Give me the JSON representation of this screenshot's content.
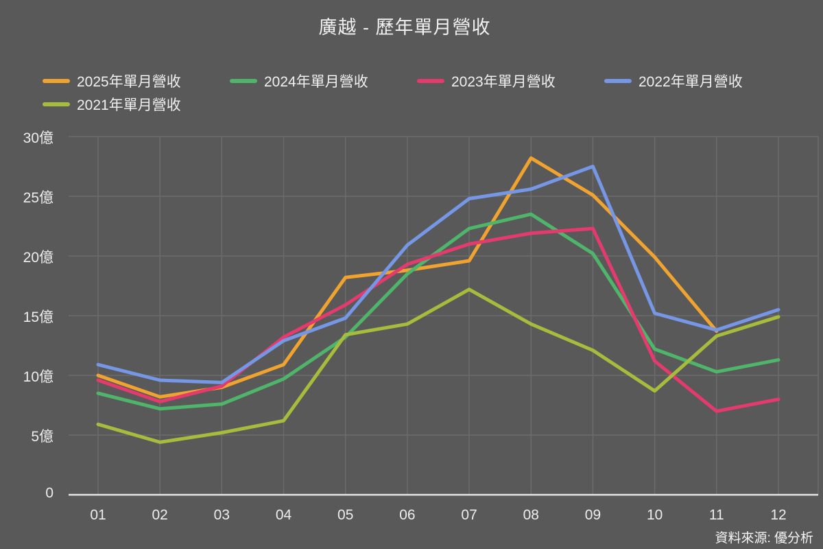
{
  "title": "廣越 - 歷年單月營收",
  "source_note": "資料來源: 優分析",
  "colors": {
    "background": "#595959",
    "text": "#F0F0F0",
    "gridline": "#6C6C6C",
    "axis_line": "#E6E6E6"
  },
  "chart_data": {
    "type": "line",
    "title": "廣越 - 歷年單月營收",
    "xlabel": "",
    "ylabel": "",
    "unit": "億",
    "ylim": [
      0,
      30
    ],
    "grid": true,
    "legend_position": "top-left",
    "categories": [
      "01",
      "02",
      "03",
      "04",
      "05",
      "06",
      "07",
      "08",
      "09",
      "10",
      "11",
      "12"
    ],
    "yticks": [
      0,
      5,
      10,
      15,
      20,
      25,
      30
    ],
    "ytick_labels": [
      "0",
      "5億",
      "10億",
      "15億",
      "20億",
      "25億",
      "30億"
    ],
    "series": [
      {
        "name": "2025年單月營收",
        "color": "#F0A32F",
        "values": [
          10.0,
          8.2,
          9.0,
          10.9,
          18.2,
          18.8,
          19.6,
          28.2,
          25.1,
          19.9,
          13.7,
          null
        ]
      },
      {
        "name": "2024年單月營收",
        "color": "#4FB56A",
        "values": [
          8.5,
          7.2,
          7.6,
          9.7,
          13.2,
          18.5,
          22.3,
          23.5,
          20.2,
          12.2,
          10.3,
          11.3
        ]
      },
      {
        "name": "2023年單月營收",
        "color": "#E53A6E",
        "values": [
          9.6,
          7.8,
          9.1,
          13.2,
          15.9,
          19.3,
          21.0,
          21.9,
          22.3,
          11.2,
          7.0,
          8.0
        ]
      },
      {
        "name": "2022年單月營收",
        "color": "#7597E6",
        "values": [
          10.9,
          9.6,
          9.4,
          12.9,
          14.8,
          20.9,
          24.8,
          25.6,
          27.5,
          15.2,
          13.8,
          15.5
        ]
      },
      {
        "name": "2021年單月營收",
        "color": "#A6BC3C",
        "values": [
          5.9,
          4.4,
          5.2,
          6.2,
          13.4,
          14.3,
          17.2,
          14.3,
          12.1,
          8.7,
          13.3,
          14.9
        ]
      }
    ]
  }
}
